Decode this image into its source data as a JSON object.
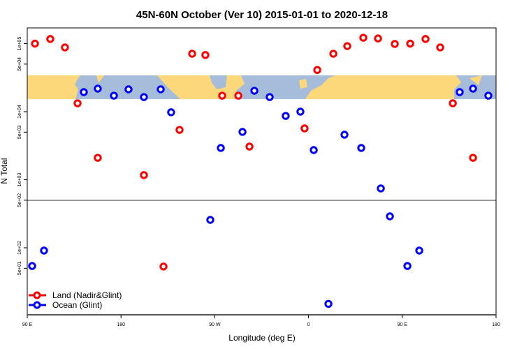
{
  "chart_data": {
    "type": "scatter",
    "title": "45N-60N October (Ver 10)   2015-01-01 to 2020-12-18",
    "xlabel": "Longitude (deg E)",
    "ylabel": "N Total",
    "x_axis_note": "unwrapped longitude, 90E through 180 twice around",
    "xlim": [
      90,
      540
    ],
    "yscale": "log",
    "ylim": [
      8,
      230000
    ],
    "x_ticks": [
      {
        "value": 90,
        "label": "90 E"
      },
      {
        "value": 180,
        "label": "180"
      },
      {
        "value": 270,
        "label": "90 W"
      },
      {
        "value": 360,
        "label": "0"
      },
      {
        "value": 450,
        "label": "90 E"
      },
      {
        "value": 540,
        "label": "180"
      }
    ],
    "y_ticks": [
      {
        "value": 100000,
        "label": "1e+05"
      },
      {
        "value": 50000,
        "label": "5e+04"
      },
      {
        "value": 10000,
        "label": "1e+04"
      },
      {
        "value": 5000,
        "label": "5e+03"
      },
      {
        "value": 1000,
        "label": "1e+03"
      },
      {
        "value": 500,
        "label": "5e+02"
      },
      {
        "value": 100,
        "label": "1e+02"
      },
      {
        "value": 50,
        "label": "5e+01"
      }
    ],
    "reference_line": 500,
    "legend_position": "bottom-left",
    "series": [
      {
        "name": "Land (Nadir&Glint)",
        "color": "#ff0000",
        "x": [
          97.4,
          112.1,
          126.2,
          138.3,
          157.7,
          202,
          220.8,
          236.2,
          248.3,
          261,
          277.1,
          292.6,
          303.3,
          356.2,
          368.4,
          383.8,
          397.2,
          412.6,
          426.7,
          442.8,
          457.6,
          472.3,
          486.4,
          498.5,
          517.9
        ],
        "y": [
          100000,
          117000,
          88000,
          13300,
          2100,
          1170,
          53,
          5400,
          71000,
          68000,
          17200,
          17200,
          3070,
          5680,
          41000,
          71000,
          92000,
          122000,
          119000,
          99000,
          100000,
          117000,
          88000,
          13300,
          2100
        ]
      },
      {
        "name": "Ocean (Glint)",
        "color": "#0000ff",
        "x": [
          94.7,
          106.1,
          144.3,
          157.7,
          173.2,
          187.2,
          202,
          218.1,
          228.1,
          265.7,
          275.8,
          296.6,
          308,
          322.7,
          338.1,
          352.2,
          365,
          379.1,
          394.5,
          410.6,
          429.4,
          438.1,
          454.9,
          466.3,
          505.1,
          517.9,
          532.6
        ],
        "y": [
          54,
          91,
          19400,
          21800,
          17200,
          21300,
          16400,
          21300,
          9800,
          257,
          2930,
          5050,
          20300,
          16400,
          8670,
          10000,
          2730,
          15,
          4590,
          2930,
          745,
          290,
          54,
          91,
          19400,
          21800,
          17200
        ]
      }
    ],
    "map_colors": {
      "land": "#fdd87a",
      "ocean": "#a6bcdb"
    }
  }
}
